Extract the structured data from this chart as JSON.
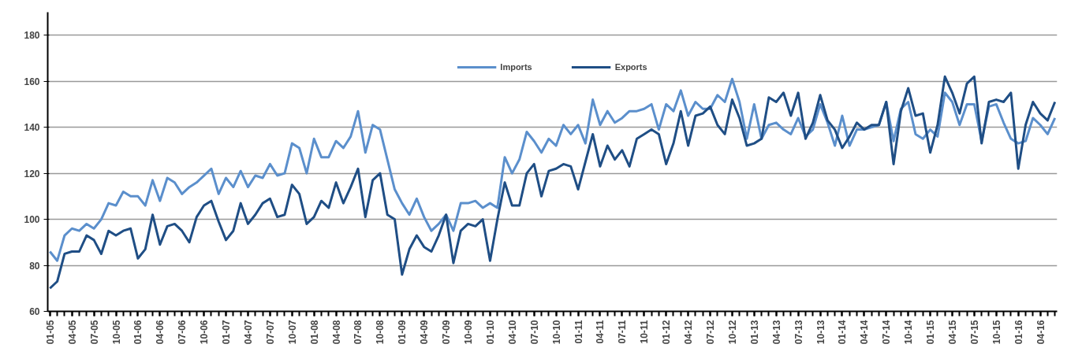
{
  "chart_data": {
    "type": "line",
    "categories": [
      "01-05",
      null,
      null,
      "04-05",
      null,
      null,
      "07-05",
      null,
      null,
      "10-05",
      null,
      null,
      "01-06",
      null,
      null,
      "04-06",
      null,
      null,
      "07-06",
      null,
      null,
      "10-06",
      null,
      null,
      "01-07",
      null,
      null,
      "04-07",
      null,
      null,
      "07-07",
      null,
      null,
      "10-07",
      null,
      null,
      "01-08",
      null,
      null,
      "04-08",
      null,
      null,
      "07-08",
      null,
      null,
      "10-08",
      null,
      null,
      "01-09",
      null,
      null,
      "04-09",
      null,
      null,
      "07-09",
      null,
      null,
      "10-09",
      null,
      null,
      "01-10",
      null,
      null,
      "04-10",
      null,
      null,
      "07-10",
      null,
      null,
      "10-10",
      null,
      null,
      "01-11",
      null,
      null,
      "04-11",
      null,
      null,
      "07-11",
      null,
      null,
      "10-11",
      null,
      null,
      "01-12",
      null,
      null,
      "04-12",
      null,
      null,
      "07-12",
      null,
      null,
      "10-12",
      null,
      null,
      "01-13",
      null,
      null,
      "04-13",
      null,
      null,
      "07-13",
      null,
      null,
      "10-13",
      null,
      null,
      "01-14",
      null,
      null,
      "04-14",
      null,
      null,
      "07-14",
      null,
      null,
      "10-14",
      null,
      null,
      "01-15",
      null,
      null,
      "04-15",
      null,
      null,
      "07-15",
      null,
      null,
      "10-15",
      null,
      null,
      "01-16",
      null,
      null,
      "04-16",
      null,
      null
    ],
    "series": [
      {
        "name": "Imports",
        "color": "#5b8fcc",
        "values": [
          86,
          82,
          93,
          96,
          95,
          98,
          96,
          100,
          107,
          106,
          112,
          110,
          110,
          106,
          117,
          108,
          118,
          116,
          111,
          114,
          116,
          119,
          122,
          111,
          118,
          114,
          121,
          114,
          119,
          118,
          124,
          119,
          120,
          133,
          131,
          120,
          135,
          127,
          127,
          134,
          131,
          136,
          147,
          129,
          141,
          139,
          126,
          113,
          107,
          102,
          109,
          101,
          95,
          98,
          102,
          95,
          107,
          107,
          108,
          105,
          107,
          105,
          127,
          120,
          126,
          138,
          134,
          129,
          135,
          132,
          141,
          137,
          141,
          133,
          152,
          141,
          147,
          142,
          144,
          147,
          147,
          148,
          150,
          139,
          150,
          147,
          156,
          145,
          151,
          148,
          148,
          154,
          151,
          161,
          151,
          135,
          150,
          135,
          141,
          142,
          139,
          137,
          144,
          136,
          139,
          150,
          142,
          132,
          145,
          132,
          139,
          139,
          140,
          141,
          151,
          134,
          148,
          151,
          137,
          135,
          139,
          136,
          155,
          151,
          141,
          150,
          150,
          134,
          149,
          150,
          142,
          135,
          133,
          134,
          144,
          141,
          137,
          144
        ]
      },
      {
        "name": "Exports",
        "color": "#1f4e85",
        "values": [
          70,
          73,
          85,
          86,
          86,
          93,
          91,
          85,
          95,
          93,
          95,
          96,
          83,
          87,
          102,
          89,
          97,
          98,
          95,
          90,
          101,
          106,
          108,
          99,
          91,
          95,
          107,
          98,
          102,
          107,
          109,
          101,
          102,
          115,
          111,
          98,
          101,
          108,
          105,
          116,
          107,
          114,
          122,
          101,
          117,
          120,
          102,
          100,
          76,
          87,
          93,
          88,
          86,
          93,
          102,
          81,
          95,
          98,
          97,
          100,
          82,
          100,
          116,
          106,
          106,
          120,
          124,
          110,
          121,
          122,
          124,
          123,
          113,
          125,
          137,
          123,
          132,
          126,
          130,
          123,
          135,
          137,
          139,
          137,
          124,
          133,
          147,
          132,
          145,
          146,
          149,
          141,
          137,
          152,
          144,
          132,
          133,
          135,
          153,
          151,
          155,
          145,
          155,
          135,
          142,
          154,
          143,
          139,
          131,
          136,
          142,
          139,
          141,
          141,
          151,
          124,
          147,
          157,
          145,
          146,
          129,
          141,
          162,
          155,
          146,
          159,
          162,
          133,
          151,
          152,
          151,
          155,
          122,
          141,
          151,
          146,
          143,
          151
        ]
      }
    ],
    "ylim": [
      60,
      190
    ],
    "yticks": [
      60,
      80,
      100,
      120,
      140,
      160,
      180
    ],
    "grid": "y",
    "legend": "top",
    "marker": "none",
    "line_style": "solid"
  }
}
